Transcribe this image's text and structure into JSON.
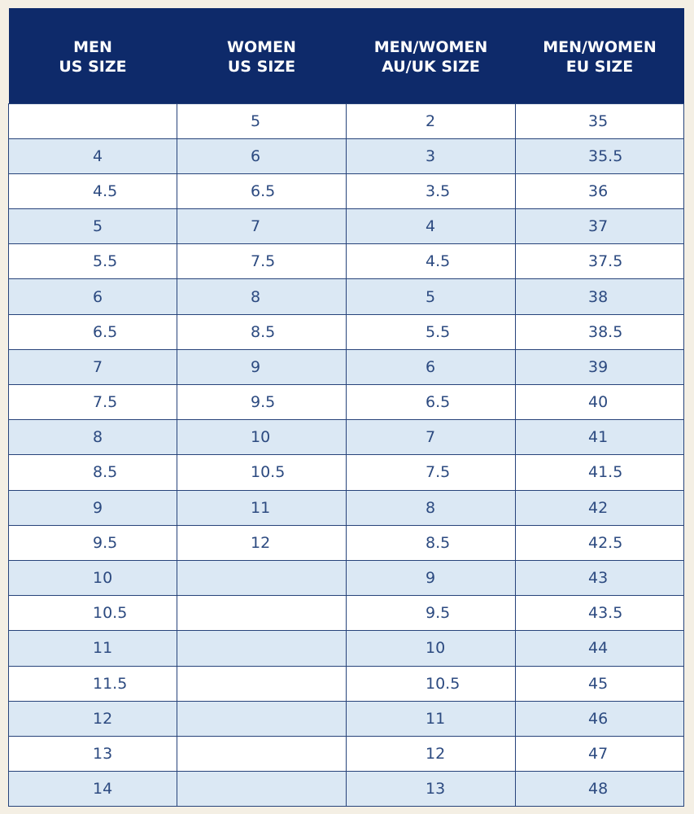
{
  "table": {
    "header": [
      [
        "MEN",
        "US SIZE"
      ],
      [
        "WOMEN",
        "US SIZE"
      ],
      [
        "MEN/WOMEN",
        "AU/UK SIZE"
      ],
      [
        "MEN/WOMEN",
        "EU SIZE"
      ]
    ],
    "rows": [
      [
        null,
        "5",
        "2",
        "35"
      ],
      [
        "4",
        "6",
        "3",
        "35.5"
      ],
      [
        "4.5",
        "6.5",
        "3.5",
        "36"
      ],
      [
        "5",
        "7",
        "4",
        "37"
      ],
      [
        "5.5",
        "7.5",
        "4.5",
        "37.5"
      ],
      [
        "6",
        "8",
        "5",
        "38"
      ],
      [
        "6.5",
        "8.5",
        "5.5",
        "38.5"
      ],
      [
        "7",
        "9",
        "6",
        "39"
      ],
      [
        "7.5",
        "9.5",
        "6.5",
        "40"
      ],
      [
        "8",
        "10",
        "7",
        "41"
      ],
      [
        "8.5",
        "10.5",
        "7.5",
        "41.5"
      ],
      [
        "9",
        "11",
        "8",
        "42"
      ],
      [
        "9.5",
        "12",
        "8.5",
        "42.5"
      ],
      [
        "10",
        null,
        "9",
        "43"
      ],
      [
        "10.5",
        null,
        "9.5",
        "43.5"
      ],
      [
        "11",
        null,
        "10",
        "44"
      ],
      [
        "11.5",
        null,
        "10.5",
        "45"
      ],
      [
        "12",
        null,
        "11",
        "46"
      ],
      [
        "13",
        null,
        "12",
        "47"
      ],
      [
        "14",
        null,
        "13",
        "48"
      ]
    ]
  }
}
